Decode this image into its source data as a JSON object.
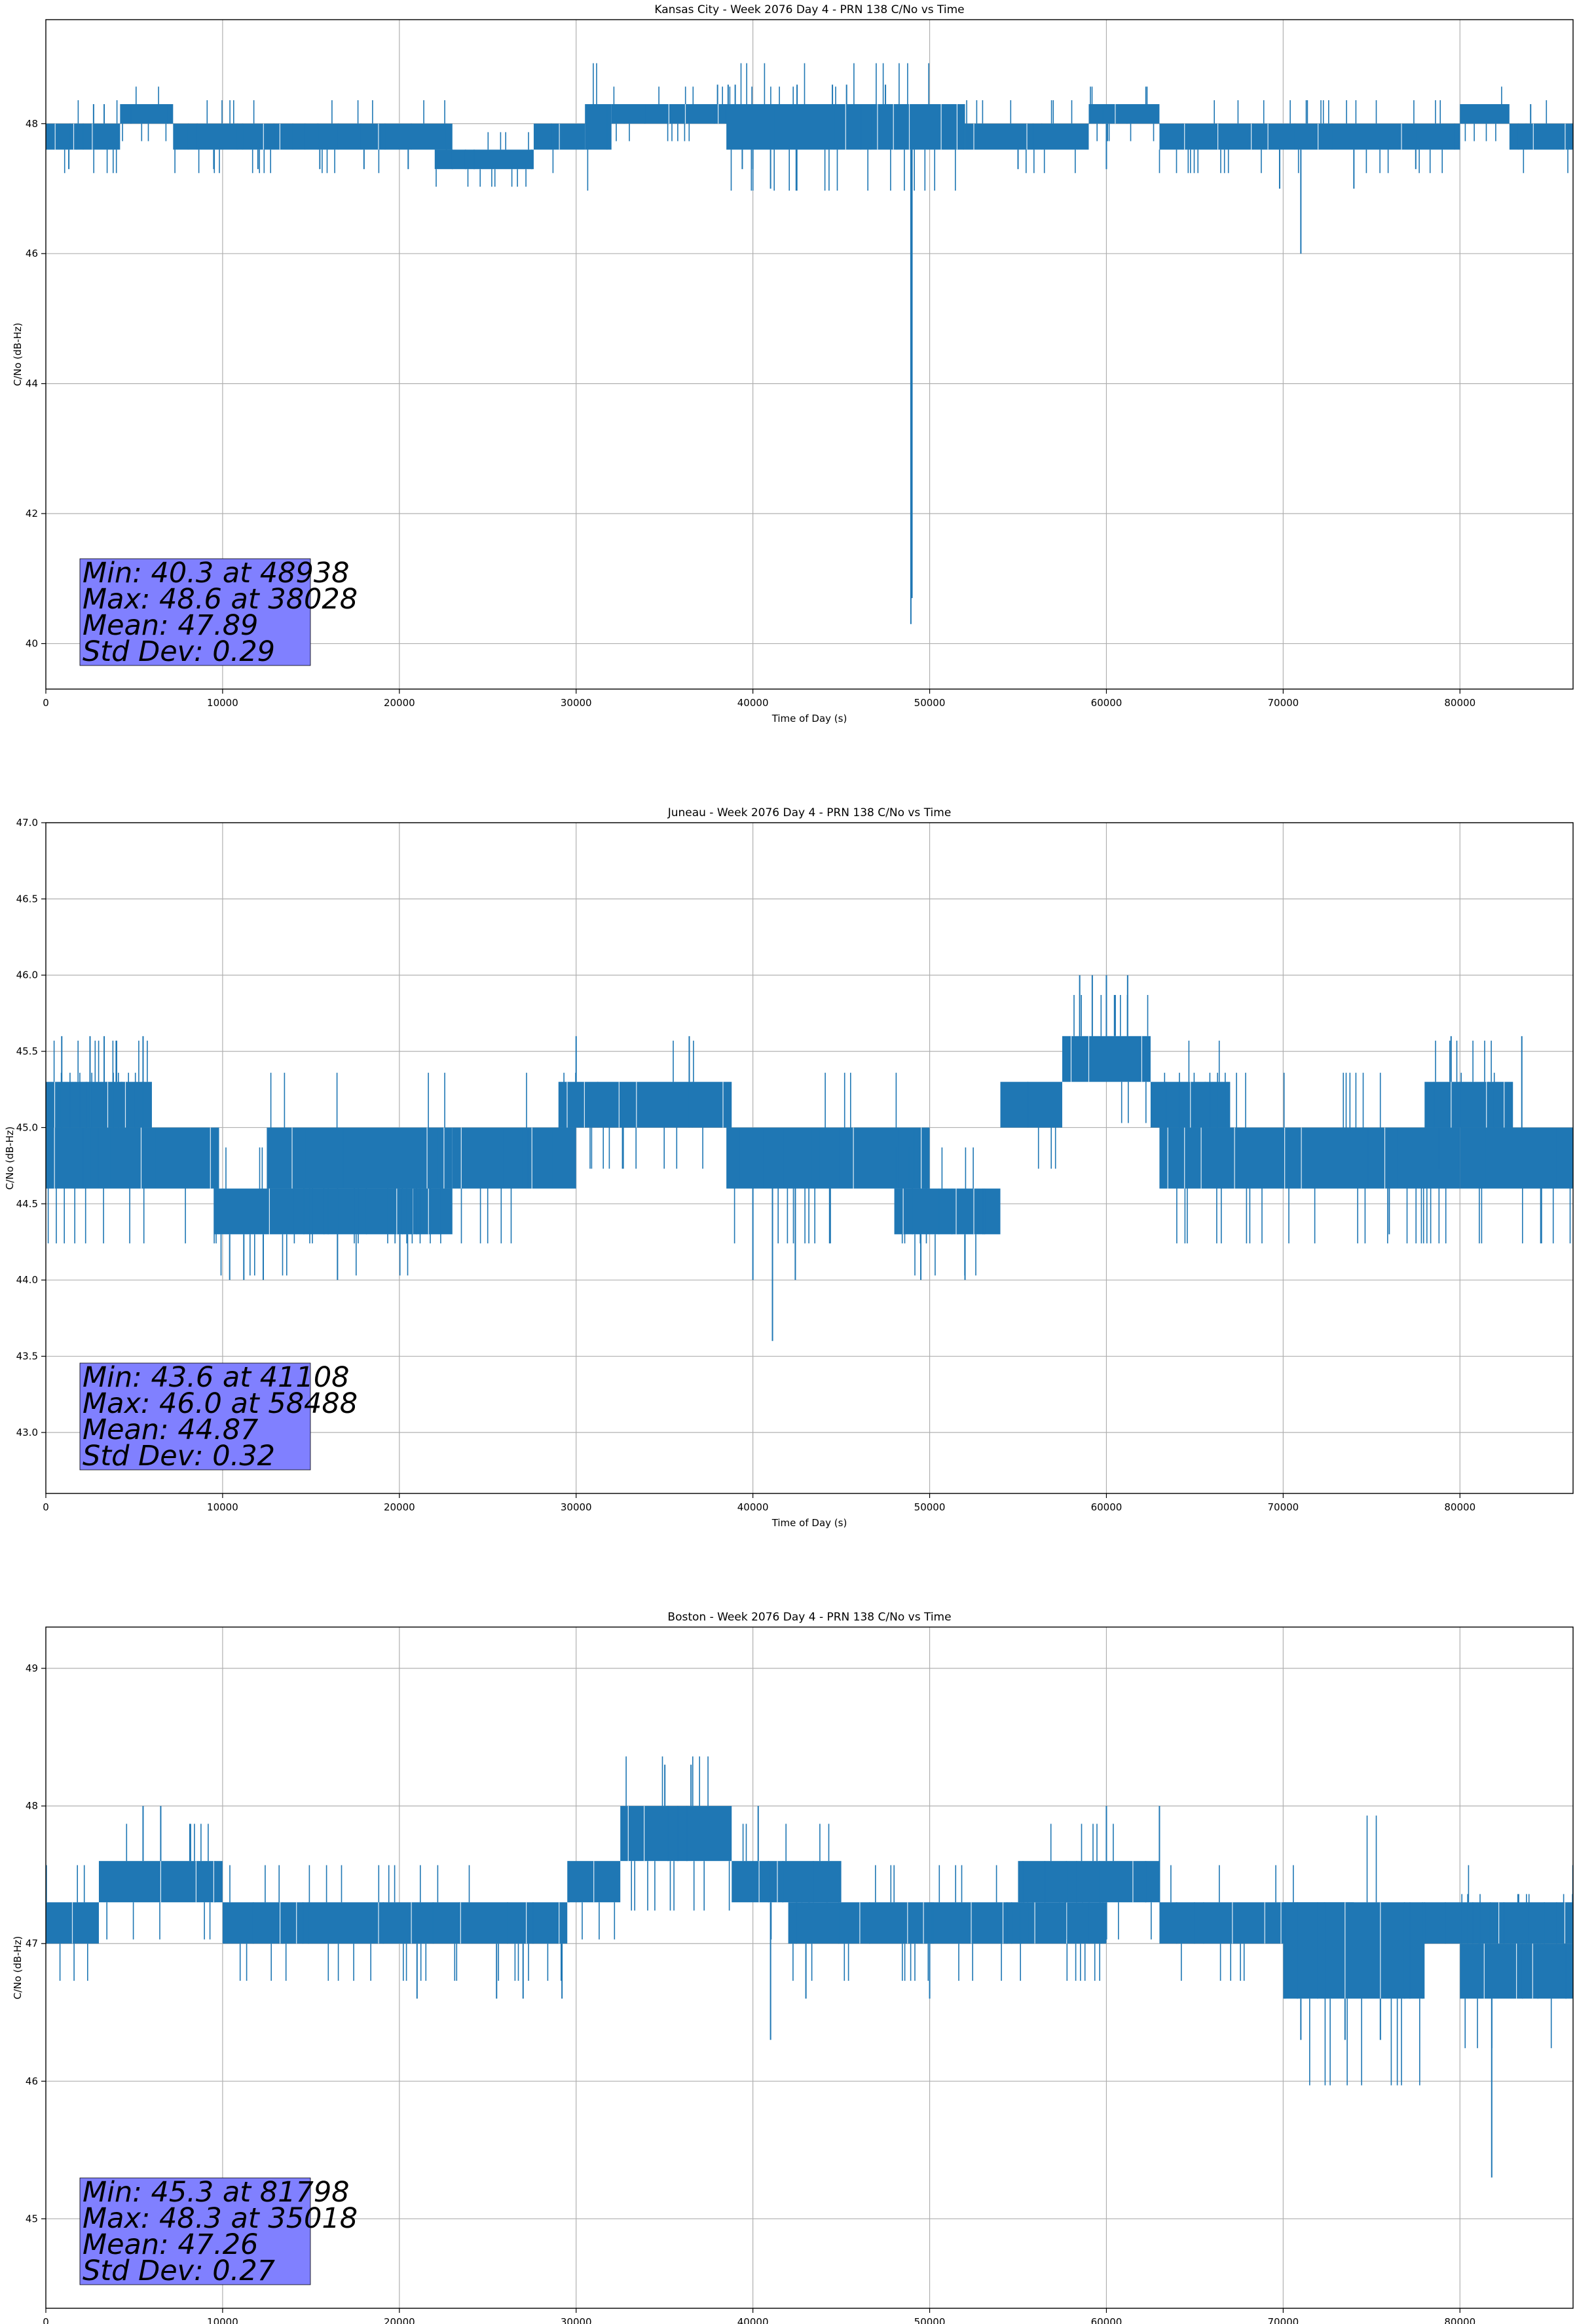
{
  "chart_data": [
    {
      "type": "line",
      "title": "Kansas City - Week 2076 Day 4 - PRN 138 C/No vs Time",
      "xlabel": "Time of Day (s)",
      "ylabel": "C/No (dB-Hz)",
      "xlim": [
        0,
        86400
      ],
      "ylim": [
        39.3,
        49.6
      ],
      "xticks": [
        0,
        10000,
        20000,
        30000,
        40000,
        50000,
        60000,
        70000,
        80000
      ],
      "yticks": [
        40,
        42,
        44,
        46,
        48
      ],
      "ytick_labels": [
        "40",
        "42",
        "44",
        "46",
        "48"
      ],
      "grid": true,
      "color": "#1f77b4",
      "stats": {
        "min": "Min: 40.3 at 48938",
        "max": "Max: 48.6 at 38028",
        "mean": "Mean: 47.89",
        "std": "Std Dev: 0.29"
      },
      "segments": [
        {
          "x": [
            0,
            4200
          ],
          "y": [
            47.6,
            48.0
          ]
        },
        {
          "x": [
            4200,
            7200
          ],
          "y": [
            48.0,
            48.3
          ]
        },
        {
          "x": [
            7200,
            23000
          ],
          "y": [
            47.6,
            48.0
          ]
        },
        {
          "x": [
            22000,
            27600
          ],
          "y": [
            47.3,
            47.6
          ]
        },
        {
          "x": [
            27600,
            30500
          ],
          "y": [
            47.6,
            48.0
          ]
        },
        {
          "x": [
            30500,
            32000
          ],
          "y": [
            47.6,
            48.3
          ]
        },
        {
          "x": [
            32000,
            45000
          ],
          "y": [
            48.0,
            48.3
          ]
        },
        {
          "x": [
            38500,
            52000
          ],
          "y": [
            47.6,
            48.3
          ]
        },
        {
          "x": [
            52000,
            59000
          ],
          "y": [
            47.6,
            48.0
          ]
        },
        {
          "x": [
            59000,
            63000
          ],
          "y": [
            48.0,
            48.3
          ]
        },
        {
          "x": [
            63000,
            80000
          ],
          "y": [
            47.6,
            48.0
          ]
        },
        {
          "x": [
            80000,
            82800
          ],
          "y": [
            48.0,
            48.3
          ]
        },
        {
          "x": [
            82800,
            86400
          ],
          "y": [
            47.6,
            48.0
          ]
        }
      ],
      "spikes": [
        {
          "x": 1300,
          "y": 47.3
        },
        {
          "x": 2700,
          "y": 48.3
        },
        {
          "x": 3300,
          "y": 48.3
        },
        {
          "x": 9500,
          "y": 47.3
        },
        {
          "x": 12000,
          "y": 47.3
        },
        {
          "x": 15500,
          "y": 47.3
        },
        {
          "x": 18000,
          "y": 47.3
        },
        {
          "x": 20500,
          "y": 47.3
        },
        {
          "x": 31800,
          "y": 48.3
        },
        {
          "x": 38000,
          "y": 48.6
        },
        {
          "x": 38600,
          "y": 48.6
        },
        {
          "x": 39000,
          "y": 48.6
        },
        {
          "x": 39400,
          "y": 47.3
        },
        {
          "x": 40000,
          "y": 47.3
        },
        {
          "x": 41000,
          "y": 47.0
        },
        {
          "x": 42500,
          "y": 48.6
        },
        {
          "x": 44500,
          "y": 48.6
        },
        {
          "x": 45300,
          "y": 48.6
        },
        {
          "x": 46100,
          "y": 47.6
        },
        {
          "x": 47500,
          "y": 48.6
        },
        {
          "x": 48938,
          "y": 40.3
        },
        {
          "x": 49000,
          "y": 40.7
        },
        {
          "x": 55000,
          "y": 47.3
        },
        {
          "x": 60000,
          "y": 47.3
        },
        {
          "x": 69800,
          "y": 47.0
        },
        {
          "x": 71000,
          "y": 46.0
        },
        {
          "x": 74000,
          "y": 47.0
        },
        {
          "x": 77500,
          "y": 47.3
        },
        {
          "x": 84000,
          "y": 48.3
        }
      ]
    },
    {
      "type": "line",
      "title": "Juneau - Week 2076 Day 4 - PRN 138 C/No vs Time",
      "xlabel": "Time of Day (s)",
      "ylabel": "C/No (dB-Hz)",
      "xlim": [
        0,
        86400
      ],
      "ylim": [
        42.6,
        47.0
      ],
      "xticks": [
        0,
        10000,
        20000,
        30000,
        40000,
        50000,
        60000,
        70000,
        80000
      ],
      "yticks": [
        43.0,
        43.5,
        44.0,
        44.5,
        45.0,
        45.5,
        46.0,
        46.5,
        47.0
      ],
      "ytick_labels": [
        "43.0",
        "43.5",
        "44.0",
        "44.5",
        "45.0",
        "45.5",
        "46.0",
        "46.5",
        "47.0"
      ],
      "grid": true,
      "color": "#1f77b4",
      "stats": {
        "min": "Min: 43.6 at 41108",
        "max": "Max: 46.0 at 58488",
        "mean": "Mean: 44.87",
        "std": "Std Dev: 0.32"
      },
      "segments": [
        {
          "x": [
            0,
            6000
          ],
          "y": [
            45.0,
            45.3
          ]
        },
        {
          "x": [
            0,
            9800
          ],
          "y": [
            44.6,
            45.0
          ]
        },
        {
          "x": [
            9500,
            23000
          ],
          "y": [
            44.3,
            44.6
          ]
        },
        {
          "x": [
            12500,
            23000
          ],
          "y": [
            44.6,
            45.0
          ]
        },
        {
          "x": [
            23000,
            30000
          ],
          "y": [
            44.6,
            45.0
          ]
        },
        {
          "x": [
            29000,
            38800
          ],
          "y": [
            45.0,
            45.3
          ]
        },
        {
          "x": [
            38500,
            50000
          ],
          "y": [
            44.6,
            45.0
          ]
        },
        {
          "x": [
            48000,
            54000
          ],
          "y": [
            44.3,
            44.6
          ]
        },
        {
          "x": [
            54000,
            57500
          ],
          "y": [
            45.0,
            45.3
          ]
        },
        {
          "x": [
            57500,
            62500
          ],
          "y": [
            45.3,
            45.6
          ]
        },
        {
          "x": [
            62500,
            67000
          ],
          "y": [
            45.0,
            45.3
          ]
        },
        {
          "x": [
            63000,
            80000
          ],
          "y": [
            44.6,
            45.0
          ]
        },
        {
          "x": [
            78000,
            83000
          ],
          "y": [
            45.0,
            45.3
          ]
        },
        {
          "x": [
            80000,
            86400
          ],
          "y": [
            44.6,
            45.0
          ]
        }
      ],
      "spikes": [
        {
          "x": 900,
          "y": 45.6
        },
        {
          "x": 2500,
          "y": 45.6
        },
        {
          "x": 3300,
          "y": 45.6
        },
        {
          "x": 5500,
          "y": 45.6
        },
        {
          "x": 10400,
          "y": 44.0
        },
        {
          "x": 11200,
          "y": 44.0
        },
        {
          "x": 12300,
          "y": 44.0
        },
        {
          "x": 16500,
          "y": 44.0
        },
        {
          "x": 30000,
          "y": 45.6
        },
        {
          "x": 36400,
          "y": 45.6
        },
        {
          "x": 40000,
          "y": 44.0
        },
        {
          "x": 41108,
          "y": 43.6
        },
        {
          "x": 42400,
          "y": 44.0
        },
        {
          "x": 49500,
          "y": 44.0
        },
        {
          "x": 52000,
          "y": 44.0
        },
        {
          "x": 58488,
          "y": 46.0
        },
        {
          "x": 59200,
          "y": 46.0
        },
        {
          "x": 60000,
          "y": 46.0
        },
        {
          "x": 61200,
          "y": 46.0
        },
        {
          "x": 76000,
          "y": 44.3
        },
        {
          "x": 79500,
          "y": 45.6
        },
        {
          "x": 83500,
          "y": 45.6
        },
        {
          "x": 84600,
          "y": 44.3
        }
      ]
    },
    {
      "type": "line",
      "title": "Boston - Week 2076 Day 4 - PRN 138 C/No vs Time",
      "xlabel": "Time of Day (s)",
      "ylabel": "C/No (dB-Hz)",
      "xlim": [
        0,
        86400
      ],
      "ylim": [
        44.35,
        49.3
      ],
      "xticks": [
        0,
        10000,
        20000,
        30000,
        40000,
        50000,
        60000,
        70000,
        80000
      ],
      "yticks": [
        45,
        46,
        47,
        48,
        49
      ],
      "ytick_labels": [
        "45",
        "46",
        "47",
        "48",
        "49"
      ],
      "grid": true,
      "color": "#1f77b4",
      "stats": {
        "min": "Min: 45.3 at 81798",
        "max": "Max: 48.3 at 35018",
        "mean": "Mean: 47.26",
        "std": "Std Dev: 0.27"
      },
      "segments": [
        {
          "x": [
            0,
            3000
          ],
          "y": [
            47.0,
            47.3
          ]
        },
        {
          "x": [
            3000,
            10000
          ],
          "y": [
            47.3,
            47.6
          ]
        },
        {
          "x": [
            10000,
            29500
          ],
          "y": [
            47.0,
            47.3
          ]
        },
        {
          "x": [
            29500,
            32500
          ],
          "y": [
            47.3,
            47.6
          ]
        },
        {
          "x": [
            32500,
            38800
          ],
          "y": [
            47.6,
            48.0
          ]
        },
        {
          "x": [
            38800,
            45000
          ],
          "y": [
            47.3,
            47.6
          ]
        },
        {
          "x": [
            42000,
            60000
          ],
          "y": [
            47.0,
            47.3
          ]
        },
        {
          "x": [
            55000,
            63000
          ],
          "y": [
            47.3,
            47.6
          ]
        },
        {
          "x": [
            63000,
            74000
          ],
          "y": [
            47.0,
            47.3
          ]
        },
        {
          "x": [
            70000,
            78000
          ],
          "y": [
            46.6,
            47.3
          ]
        },
        {
          "x": [
            78000,
            86400
          ],
          "y": [
            47.0,
            47.3
          ]
        },
        {
          "x": [
            80000,
            86400
          ],
          "y": [
            46.6,
            47.0
          ]
        }
      ],
      "spikes": [
        {
          "x": 5500,
          "y": 48.0
        },
        {
          "x": 6500,
          "y": 48.0
        },
        {
          "x": 21000,
          "y": 46.6
        },
        {
          "x": 25500,
          "y": 46.6
        },
        {
          "x": 27000,
          "y": 46.6
        },
        {
          "x": 29200,
          "y": 46.6
        },
        {
          "x": 35018,
          "y": 48.3
        },
        {
          "x": 36000,
          "y": 48.0
        },
        {
          "x": 36500,
          "y": 48.3
        },
        {
          "x": 40300,
          "y": 48.0
        },
        {
          "x": 41000,
          "y": 46.3
        },
        {
          "x": 43000,
          "y": 46.6
        },
        {
          "x": 50000,
          "y": 46.6
        },
        {
          "x": 60000,
          "y": 48.0
        },
        {
          "x": 63000,
          "y": 48.0
        },
        {
          "x": 71000,
          "y": 46.3
        },
        {
          "x": 73500,
          "y": 46.3
        },
        {
          "x": 75500,
          "y": 46.3
        },
        {
          "x": 81798,
          "y": 45.3
        },
        {
          "x": 86000,
          "y": 46.6
        }
      ]
    }
  ]
}
